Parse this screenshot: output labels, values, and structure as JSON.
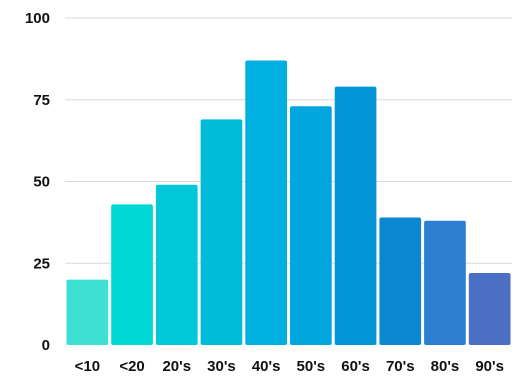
{
  "chart_data": {
    "type": "bar",
    "title": "",
    "xlabel": "",
    "ylabel": "",
    "categories": [
      "<10",
      "<20",
      "20's",
      "30's",
      "40's",
      "50's",
      "60's",
      "70's",
      "80's",
      "90's"
    ],
    "values": [
      20,
      43,
      49,
      69,
      87,
      73,
      79,
      39,
      38,
      22
    ],
    "ylim": [
      0,
      100
    ],
    "yticks": [
      0,
      25,
      50,
      75,
      100
    ],
    "grid": true,
    "legend": "none",
    "colors": [
      "#3fe0d4",
      "#00d8d6",
      "#00c8d8",
      "#00bcd8",
      "#00b0e0",
      "#02a6df",
      "#0496d6",
      "#0a88d2",
      "#2c7fd0",
      "#4a6fc4"
    ]
  }
}
